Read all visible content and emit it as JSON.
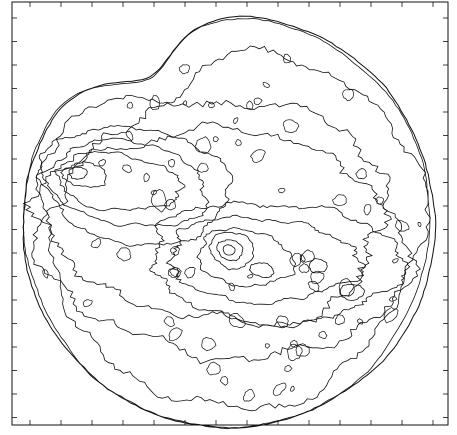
{
  "chart_data": {
    "type": "contour"
  }
}
